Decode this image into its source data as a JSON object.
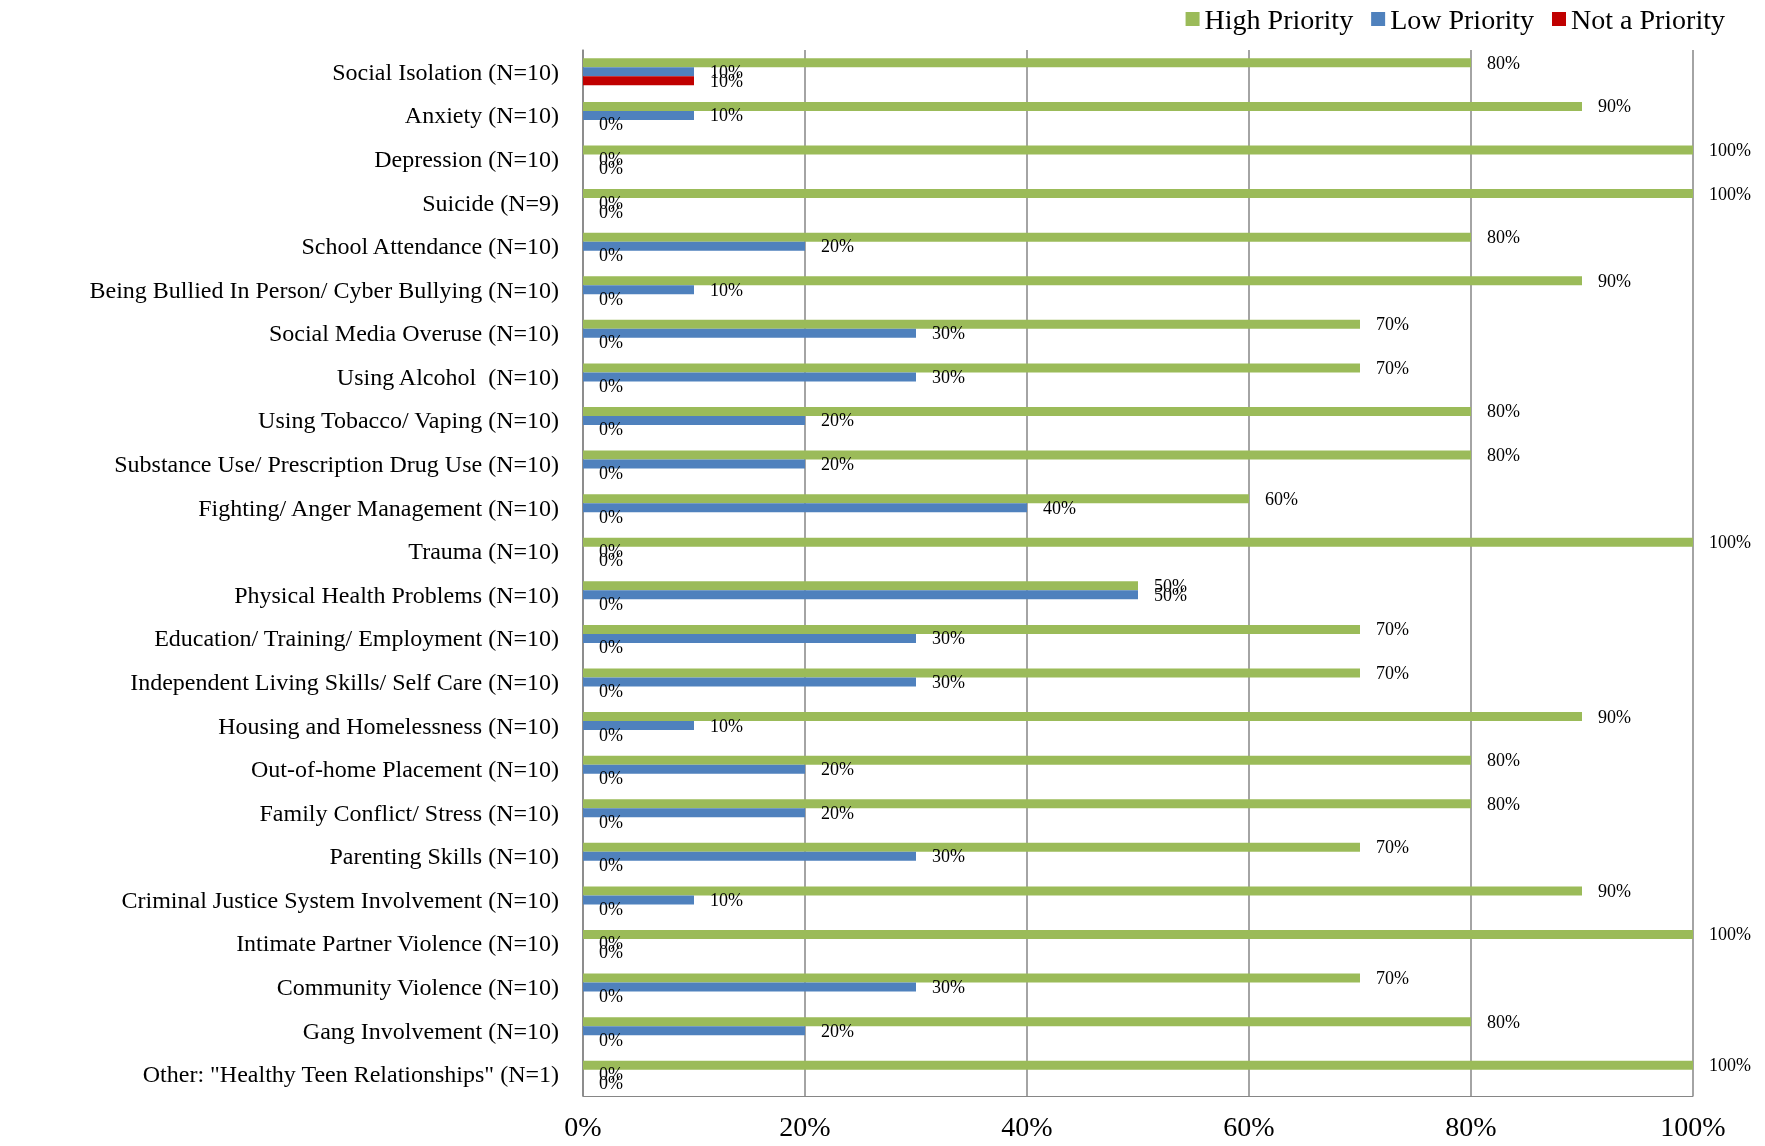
{
  "chart_data": {
    "type": "bar",
    "orientation": "horizontal",
    "legend": "top right",
    "grid": "x",
    "categories": [
      "Social Isolation (N=10)",
      "Anxiety (N=10)",
      "Depression (N=10)",
      "Suicide (N=9)",
      "School Attendance (N=10)",
      "Being Bullied In Person/ Cyber Bullying (N=10)",
      "Social Media Overuse (N=10)",
      "Using Alcohol  (N=10)",
      "Using Tobacco/ Vaping (N=10)",
      "Substance Use/ Prescription Drug Use (N=10)",
      "Fighting/ Anger Management (N=10)",
      "Trauma (N=10)",
      "Physical Health Problems (N=10)",
      "Education/ Training/ Employment (N=10)",
      "Independent Living Skills/ Self Care (N=10)",
      "Housing and Homelessness (N=10)",
      "Out-of-home Placement (N=10)",
      "Family Conflict/ Stress (N=10)",
      "Parenting Skills (N=10)",
      "Criminal Justice System Involvement (N=10)",
      "Intimate Partner Violence (N=10)",
      "Community Violence (N=10)",
      "Gang Involvement (N=10)",
      "Other: \"Healthy Teen Relationships\" (N=1)"
    ],
    "xlim": [
      0,
      100
    ],
    "xticks": [
      {
        "value": 0,
        "label": "0%"
      },
      {
        "value": 20,
        "label": "20%"
      },
      {
        "value": 40,
        "label": "40%"
      },
      {
        "value": 60,
        "label": "60%"
      },
      {
        "value": 80,
        "label": "80%"
      },
      {
        "value": 100,
        "label": "100%"
      }
    ],
    "series": [
      {
        "name": "High Priority",
        "color": "#9bbb59",
        "values": [
          80,
          90,
          100,
          100,
          80,
          90,
          70,
          70,
          80,
          80,
          60,
          100,
          50,
          70,
          70,
          90,
          80,
          80,
          70,
          90,
          100,
          70,
          80,
          100
        ],
        "value_labels": [
          "80%",
          "90%",
          "100%",
          "100%",
          "80%",
          "90%",
          "70%",
          "70%",
          "80%",
          "80%",
          "60%",
          "100%",
          "50%",
          "70%",
          "70%",
          "90%",
          "80%",
          "80%",
          "70%",
          "90%",
          "100%",
          "70%",
          "80%",
          "100%"
        ]
      },
      {
        "name": "Low Priority",
        "color": "#4f81bd",
        "values": [
          10,
          10,
          0,
          0,
          20,
          10,
          30,
          30,
          20,
          20,
          40,
          0,
          50,
          30,
          30,
          10,
          20,
          20,
          30,
          10,
          0,
          30,
          20,
          0
        ],
        "value_labels": [
          "10%",
          "10%",
          "0%",
          "0%",
          "20%",
          "10%",
          "30%",
          "30%",
          "20%",
          "20%",
          "40%",
          "0%",
          "50%",
          "30%",
          "30%",
          "10%",
          "20%",
          "20%",
          "30%",
          "10%",
          "0%",
          "30%",
          "20%",
          "0%"
        ]
      },
      {
        "name": "Not a Priority",
        "color": "#c00000",
        "values": [
          10,
          0,
          0,
          0,
          0,
          0,
          0,
          0,
          0,
          0,
          0,
          0,
          0,
          0,
          0,
          0,
          0,
          0,
          0,
          0,
          0,
          0,
          0,
          0
        ],
        "value_labels": [
          "10%",
          "0%",
          "0%",
          "0%",
          "0%",
          "0%",
          "0%",
          "0%",
          "0%",
          "0%",
          "0%",
          "0%",
          "0%",
          "0%",
          "0%",
          "0%",
          "0%",
          "0%",
          "0%",
          "0%",
          "0%",
          "0%",
          "0%",
          "0%"
        ]
      }
    ]
  }
}
